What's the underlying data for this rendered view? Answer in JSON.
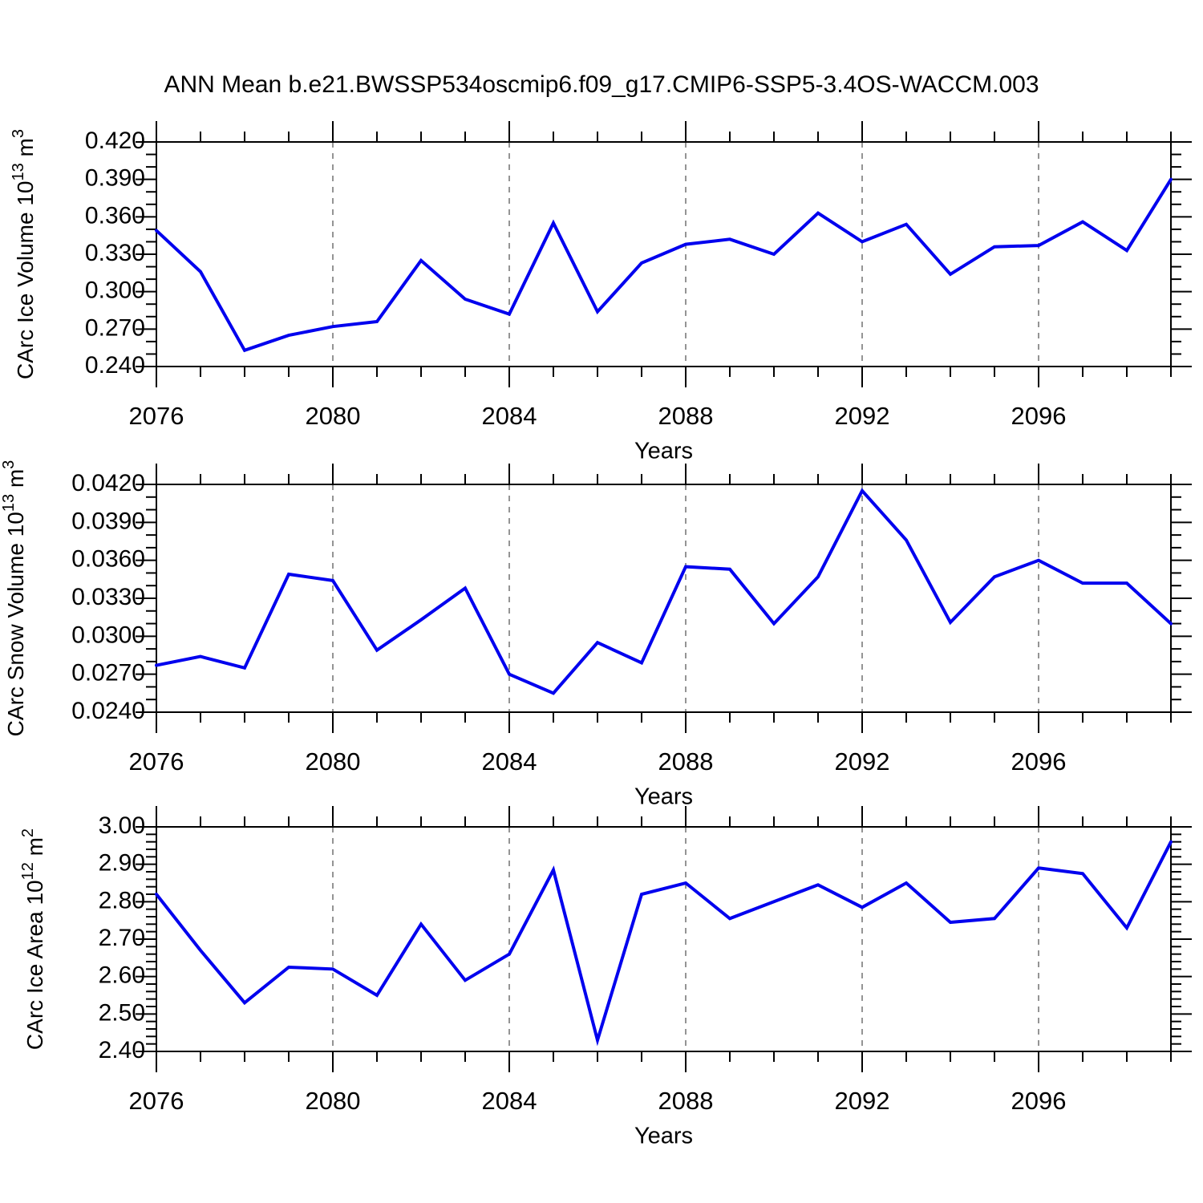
{
  "title": "ANN Mean b.e21.BWSSP534oscmip6.f09_g17.CMIP6-SSP5-3.4OS-WACCM.003",
  "colors": {
    "line": "#0000EE",
    "grid": "#7A7A7A",
    "axis": "#000000",
    "text": "#000000",
    "background": "#FFFFFF"
  },
  "chart_data": [
    {
      "type": "line",
      "name": "carc-ice-volume",
      "xlabel": "Years",
      "ylabel_segments": [
        {
          "t": "CArc Ice Volume 10"
        },
        {
          "t": "13",
          "sup": true
        },
        {
          "t": " m"
        },
        {
          "t": "3",
          "sup": true
        }
      ],
      "x_start": 2076,
      "x_end": 2099,
      "x_major_step": 4,
      "x_minor_step": 1,
      "x_tick_labels": [
        "2076",
        "2080",
        "2084",
        "2088",
        "2092",
        "2096"
      ],
      "ylim": [
        0.24,
        0.42
      ],
      "y_major_step": 0.03,
      "y_minor_step": 0.01,
      "y_decimals": 3,
      "grid": "vertical dashed at major x ticks",
      "x": [
        2076,
        2077,
        2078,
        2079,
        2080,
        2081,
        2082,
        2083,
        2084,
        2085,
        2086,
        2087,
        2088,
        2089,
        2090,
        2091,
        2092,
        2093,
        2094,
        2095,
        2096,
        2097,
        2098,
        2099
      ],
      "values": [
        0.349,
        0.316,
        0.253,
        0.265,
        0.272,
        0.276,
        0.325,
        0.294,
        0.282,
        0.355,
        0.284,
        0.323,
        0.338,
        0.342,
        0.33,
        0.363,
        0.34,
        0.354,
        0.314,
        0.336,
        0.337,
        0.356,
        0.333,
        0.39
      ]
    },
    {
      "type": "line",
      "name": "carc-snow-volume",
      "xlabel": "Years",
      "ylabel_segments": [
        {
          "t": "CArc Snow Volume 10"
        },
        {
          "t": "13",
          "sup": true
        },
        {
          "t": " m"
        },
        {
          "t": "3",
          "sup": true
        }
      ],
      "x_start": 2076,
      "x_end": 2099,
      "x_major_step": 4,
      "x_minor_step": 1,
      "x_tick_labels": [
        "2076",
        "2080",
        "2084",
        "2088",
        "2092",
        "2096"
      ],
      "ylim": [
        0.024,
        0.042
      ],
      "y_major_step": 0.003,
      "y_minor_step": 0.001,
      "y_decimals": 4,
      "grid": "vertical dashed at major x ticks",
      "x": [
        2076,
        2077,
        2078,
        2079,
        2080,
        2081,
        2082,
        2083,
        2084,
        2085,
        2086,
        2087,
        2088,
        2089,
        2090,
        2091,
        2092,
        2093,
        2094,
        2095,
        2096,
        2097,
        2098,
        2099
      ],
      "values": [
        0.0277,
        0.0284,
        0.0275,
        0.0349,
        0.0344,
        0.0289,
        0.0313,
        0.0338,
        0.027,
        0.0255,
        0.0295,
        0.0279,
        0.0355,
        0.0353,
        0.031,
        0.0347,
        0.0415,
        0.0376,
        0.0311,
        0.0347,
        0.036,
        0.0342,
        0.0342,
        0.031
      ]
    },
    {
      "type": "line",
      "name": "carc-ice-area",
      "xlabel": "Years",
      "ylabel_segments": [
        {
          "t": "CArc Ice Area 10"
        },
        {
          "t": "12",
          "sup": true
        },
        {
          "t": " m"
        },
        {
          "t": "2",
          "sup": true
        }
      ],
      "x_start": 2076,
      "x_end": 2099,
      "x_major_step": 4,
      "x_minor_step": 1,
      "x_tick_labels": [
        "2076",
        "2080",
        "2084",
        "2088",
        "2092",
        "2096"
      ],
      "ylim": [
        2.4,
        3.0
      ],
      "y_major_step": 0.1,
      "y_minor_step": 0.02,
      "y_decimals": 2,
      "grid": "vertical dashed at major x ticks",
      "x": [
        2076,
        2077,
        2078,
        2079,
        2080,
        2081,
        2082,
        2083,
        2084,
        2085,
        2086,
        2087,
        2088,
        2089,
        2090,
        2091,
        2092,
        2093,
        2094,
        2095,
        2096,
        2097,
        2098,
        2099
      ],
      "values": [
        2.82,
        2.67,
        2.53,
        2.625,
        2.62,
        2.55,
        2.74,
        2.59,
        2.66,
        2.885,
        2.43,
        2.82,
        2.85,
        2.755,
        2.8,
        2.845,
        2.785,
        2.85,
        2.745,
        2.755,
        2.89,
        2.875,
        2.73,
        2.96
      ]
    }
  ]
}
